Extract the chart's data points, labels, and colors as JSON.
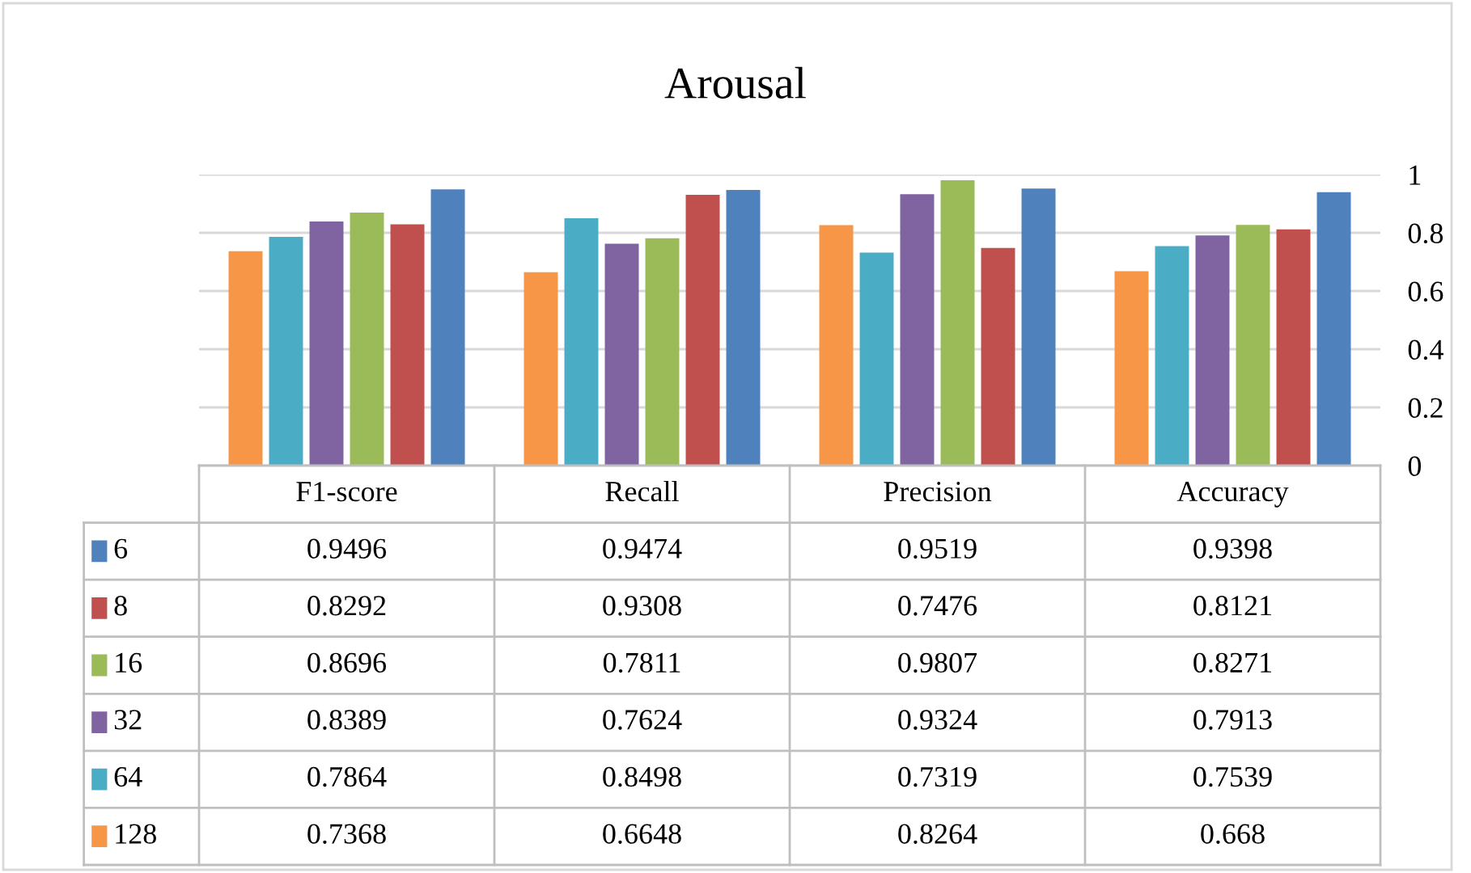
{
  "chart_data": {
    "type": "bar",
    "title": "Arousal",
    "categories": [
      "F1-score",
      "Recall",
      "Precision",
      "Accuracy"
    ],
    "series": [
      {
        "name": "6",
        "color": "#4f81bd",
        "values": [
          0.9496,
          0.9474,
          0.9519,
          0.9398
        ]
      },
      {
        "name": "8",
        "color": "#c0504d",
        "values": [
          0.8292,
          0.9308,
          0.7476,
          0.8121
        ]
      },
      {
        "name": "16",
        "color": "#9bbb59",
        "values": [
          0.8696,
          0.7811,
          0.9807,
          0.8271
        ]
      },
      {
        "name": "32",
        "color": "#8064a2",
        "values": [
          0.8389,
          0.7624,
          0.9324,
          0.7913
        ]
      },
      {
        "name": "64",
        "color": "#4bacc6",
        "values": [
          0.7864,
          0.8498,
          0.7319,
          0.7539
        ]
      },
      {
        "name": "128",
        "color": "#f79646",
        "values": [
          0.7368,
          0.6648,
          0.8264,
          0.668
        ]
      }
    ],
    "value_labels": [
      [
        "0.9496",
        "0.9474",
        "0.9519",
        "0.9398"
      ],
      [
        "0.8292",
        "0.9308",
        "0.7476",
        "0.8121"
      ],
      [
        "0.8696",
        "0.7811",
        "0.9807",
        "0.8271"
      ],
      [
        "0.8389",
        "0.7624",
        "0.9324",
        "0.7913"
      ],
      [
        "0.7864",
        "0.8498",
        "0.7319",
        "0.7539"
      ],
      [
        "0.7368",
        "0.6648",
        "0.8264",
        "0.668"
      ]
    ],
    "ylim": [
      0,
      1
    ],
    "yticks": [
      0,
      0.2,
      0.4,
      0.6,
      0.8,
      1
    ],
    "grid": "y",
    "legend": "bottom"
  }
}
